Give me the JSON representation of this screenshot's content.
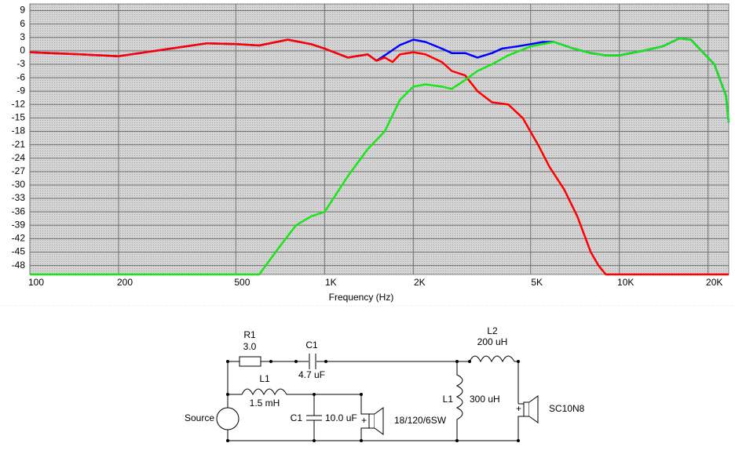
{
  "chart_data": {
    "type": "line",
    "x_label": "Frequency (Hz)",
    "log_scale": "x",
    "grid": true,
    "xlim": [
      100,
      23500
    ],
    "ylim": [
      -50,
      10.5
    ],
    "xticks": [
      100,
      200,
      500,
      {
        "value": 1000,
        "label": "1K"
      },
      {
        "value": 2000,
        "label": "2K"
      },
      {
        "value": 5000,
        "label": "5K"
      },
      {
        "value": 10000,
        "label": "10K"
      },
      {
        "value": 20000,
        "label": "20K"
      }
    ],
    "yticks": [
      9,
      6,
      3,
      0,
      -3,
      -6,
      -9,
      -12,
      -15,
      -18,
      -21,
      -24,
      -27,
      -30,
      -33,
      -36,
      -39,
      -42,
      -45,
      -48
    ],
    "series": [
      {
        "color": "#0000ff",
        "x": [
          100,
          150,
          200,
          300,
          400,
          500,
          600,
          750,
          900,
          1000,
          1200,
          1400,
          1500,
          1600,
          1800,
          2000,
          2200,
          2500,
          2700,
          3000,
          3300,
          3700,
          4000,
          4500,
          5000,
          5500,
          6000,
          7000,
          8000,
          9000,
          10000,
          12000,
          14000,
          16000,
          17500,
          19000,
          21000,
          23000,
          23500
        ],
        "values": [
          -0.3,
          -0.8,
          -1.2,
          0.5,
          1.7,
          1.5,
          1.2,
          2.5,
          1.5,
          0.5,
          -1.5,
          -0.8,
          -2.2,
          -1,
          1.3,
          2.5,
          2,
          0.5,
          -0.5,
          -0.5,
          -1.5,
          -0.5,
          0.5,
          1,
          1.5,
          2,
          2,
          0.5,
          -0.5,
          -1,
          -1,
          0,
          1,
          2.8,
          2.5,
          0,
          -3,
          -10,
          -16
        ]
      },
      {
        "color": "#ff0000",
        "x": [
          100,
          150,
          200,
          300,
          400,
          500,
          600,
          750,
          900,
          1000,
          1200,
          1400,
          1500,
          1600,
          1700,
          1800,
          2000,
          2200,
          2500,
          2700,
          3000,
          3300,
          3700,
          4200,
          4700,
          5300,
          5800,
          6500,
          7200,
          8000,
          8500,
          9000,
          23500
        ],
        "values": [
          -0.3,
          -0.8,
          -1.2,
          0.5,
          1.7,
          1.5,
          1.2,
          2.5,
          1.5,
          0.5,
          -1.5,
          -0.8,
          -2.2,
          -1.5,
          -2.5,
          -0.8,
          -0.3,
          -0.8,
          -2.5,
          -4.5,
          -5.5,
          -9,
          -11.5,
          -12,
          -15,
          -21,
          -26,
          -31,
          -37,
          -45,
          -48,
          -50,
          -50
        ]
      },
      {
        "color": "#19e619",
        "x": [
          100,
          600,
          700,
          800,
          900,
          1000,
          1200,
          1400,
          1600,
          1800,
          2000,
          2200,
          2500,
          2700,
          3000,
          3300,
          3700,
          4200,
          5000,
          6000,
          7000,
          8000,
          9000,
          10000,
          12000,
          14000,
          16000,
          17500,
          19000,
          21000,
          23000,
          23500
        ],
        "values": [
          -50,
          -50,
          -44,
          -39,
          -37,
          -36,
          -28,
          -22,
          -18,
          -11,
          -8,
          -7.5,
          -8,
          -8.5,
          -6.5,
          -4.5,
          -3,
          -1,
          1,
          2,
          0.5,
          -0.5,
          -1,
          -1,
          0,
          1,
          2.8,
          2.5,
          0,
          -3,
          -10,
          -16
        ]
      }
    ]
  },
  "circuit": {
    "r1": "R1",
    "r1_value": "3.0",
    "c1_top": "C1",
    "c1_top_value": "4.7 uF",
    "l1_left": "L1",
    "l1_left_value": "1.5 mH",
    "c1_bottom": "C1",
    "c1_bottom_value": "10.0 uF",
    "woofer": "18/120/6SW",
    "l2": "L2",
    "l2_value": "200 uH",
    "l1_right": "L1",
    "l1_right_value": "300 uH",
    "tweeter": "SC10N8",
    "source": "Source",
    "woofer_plus": "+",
    "tweeter_plus": "+"
  }
}
